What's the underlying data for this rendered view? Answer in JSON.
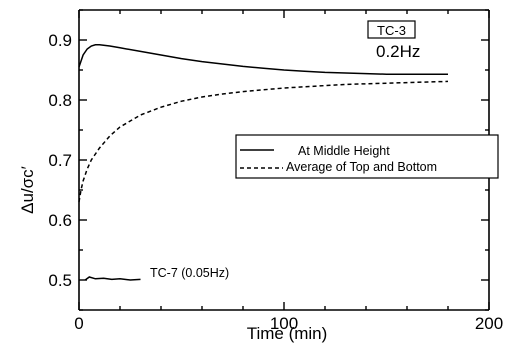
{
  "chart_data": {
    "type": "line",
    "xlabel": "Time (min)",
    "ylabel": "Δu/σc′",
    "xlim": [
      0,
      200
    ],
    "ylim": [
      0.45,
      0.95
    ],
    "xticks": [
      "0",
      "100",
      "200"
    ],
    "yticks": [
      "0.5",
      "0.6",
      "0.7",
      "0.8",
      "0.9"
    ],
    "grid": false,
    "legend_position": "right-middle",
    "annotations": {
      "test_id": "TC-3",
      "frequency": "0.2Hz",
      "inline_label": "TC-7 (0.05Hz)"
    },
    "series": [
      {
        "name": "At Middle Height",
        "style": "solid",
        "x": [
          0,
          2,
          4,
          6,
          8,
          10,
          15,
          20,
          30,
          40,
          50,
          60,
          70,
          80,
          90,
          100,
          110,
          120,
          130,
          140,
          150,
          160,
          170,
          180
        ],
        "y": [
          0.855,
          0.875,
          0.885,
          0.89,
          0.892,
          0.892,
          0.89,
          0.887,
          0.881,
          0.875,
          0.869,
          0.864,
          0.86,
          0.856,
          0.853,
          0.85,
          0.848,
          0.846,
          0.845,
          0.844,
          0.843,
          0.843,
          0.843,
          0.843
        ]
      },
      {
        "name": "Average of Top and Bottom",
        "style": "dashed",
        "x": [
          0,
          1,
          2,
          4,
          6,
          8,
          10,
          15,
          20,
          30,
          40,
          50,
          60,
          70,
          80,
          90,
          100,
          110,
          120,
          130,
          140,
          150,
          160,
          170,
          180
        ],
        "y": [
          0.63,
          0.65,
          0.665,
          0.685,
          0.7,
          0.71,
          0.72,
          0.74,
          0.755,
          0.775,
          0.788,
          0.798,
          0.805,
          0.81,
          0.814,
          0.817,
          0.82,
          0.822,
          0.824,
          0.826,
          0.827,
          0.828,
          0.829,
          0.83,
          0.831
        ]
      },
      {
        "name": "TC-7 (0.05Hz)",
        "style": "solid",
        "x": [
          3,
          5,
          8,
          12,
          16,
          20,
          25,
          30
        ],
        "y": [
          0.5,
          0.505,
          0.502,
          0.503,
          0.501,
          0.502,
          0.5,
          0.501
        ]
      }
    ]
  }
}
